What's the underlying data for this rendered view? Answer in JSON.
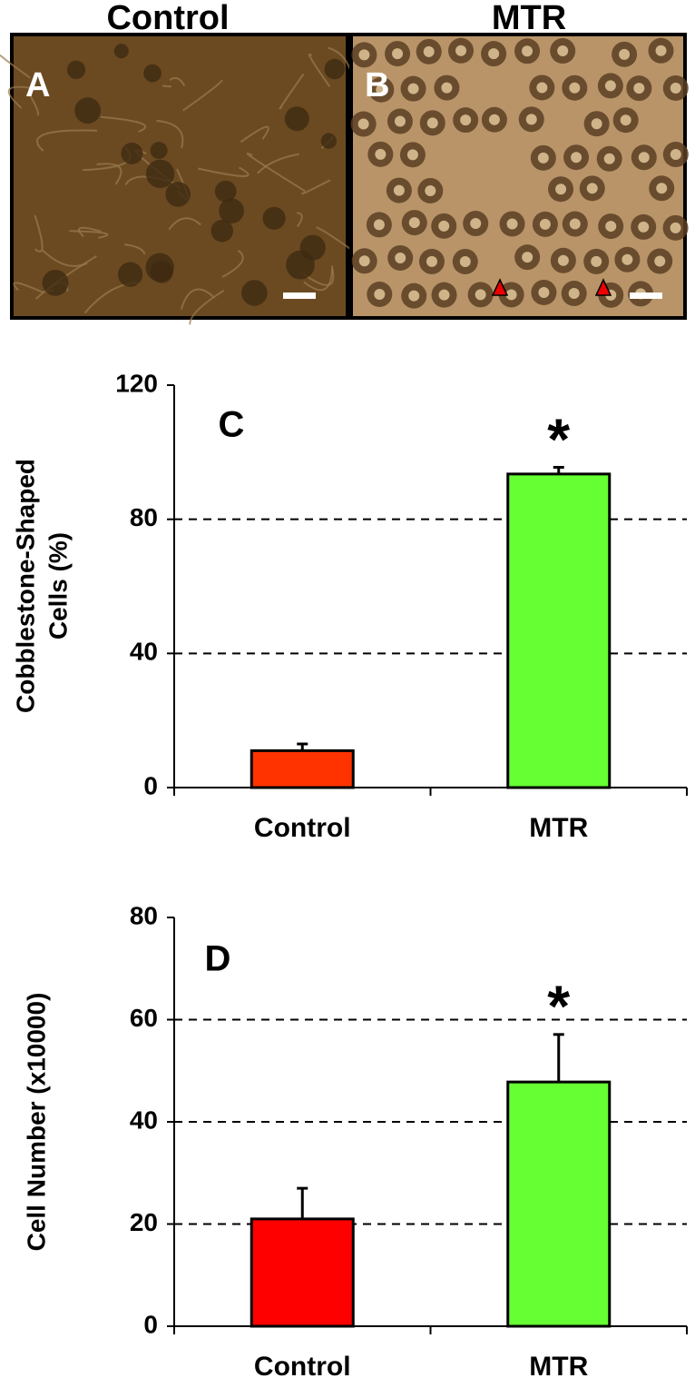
{
  "figure": {
    "column_titles": [
      "Control",
      "MTR"
    ],
    "panel_labels": [
      "A",
      "B"
    ]
  },
  "chart_data": [
    {
      "type": "bar",
      "label": "C",
      "marker": "*",
      "ylabel": [
        "Cobblestone-Shaped",
        "Cells (%)"
      ],
      "categories": [
        "Control",
        "MTR"
      ],
      "values": [
        11,
        93.5
      ],
      "errors": [
        2,
        2
      ],
      "colors": [
        "#ff3300",
        "#66ff33"
      ],
      "ylim": [
        0,
        120
      ],
      "yticks": [
        0,
        40,
        80,
        120
      ],
      "grid": true
    },
    {
      "type": "bar",
      "label": "D",
      "marker": "*",
      "ylabel": [
        "Cell Number (x10000)"
      ],
      "categories": [
        "Control",
        "MTR"
      ],
      "values": [
        21,
        47.8
      ],
      "errors": [
        6,
        9.3
      ],
      "colors": [
        "#ff0000",
        "#66ff33"
      ],
      "ylim": [
        0,
        80
      ],
      "yticks": [
        0,
        20,
        40,
        60,
        80
      ],
      "grid": true
    }
  ]
}
